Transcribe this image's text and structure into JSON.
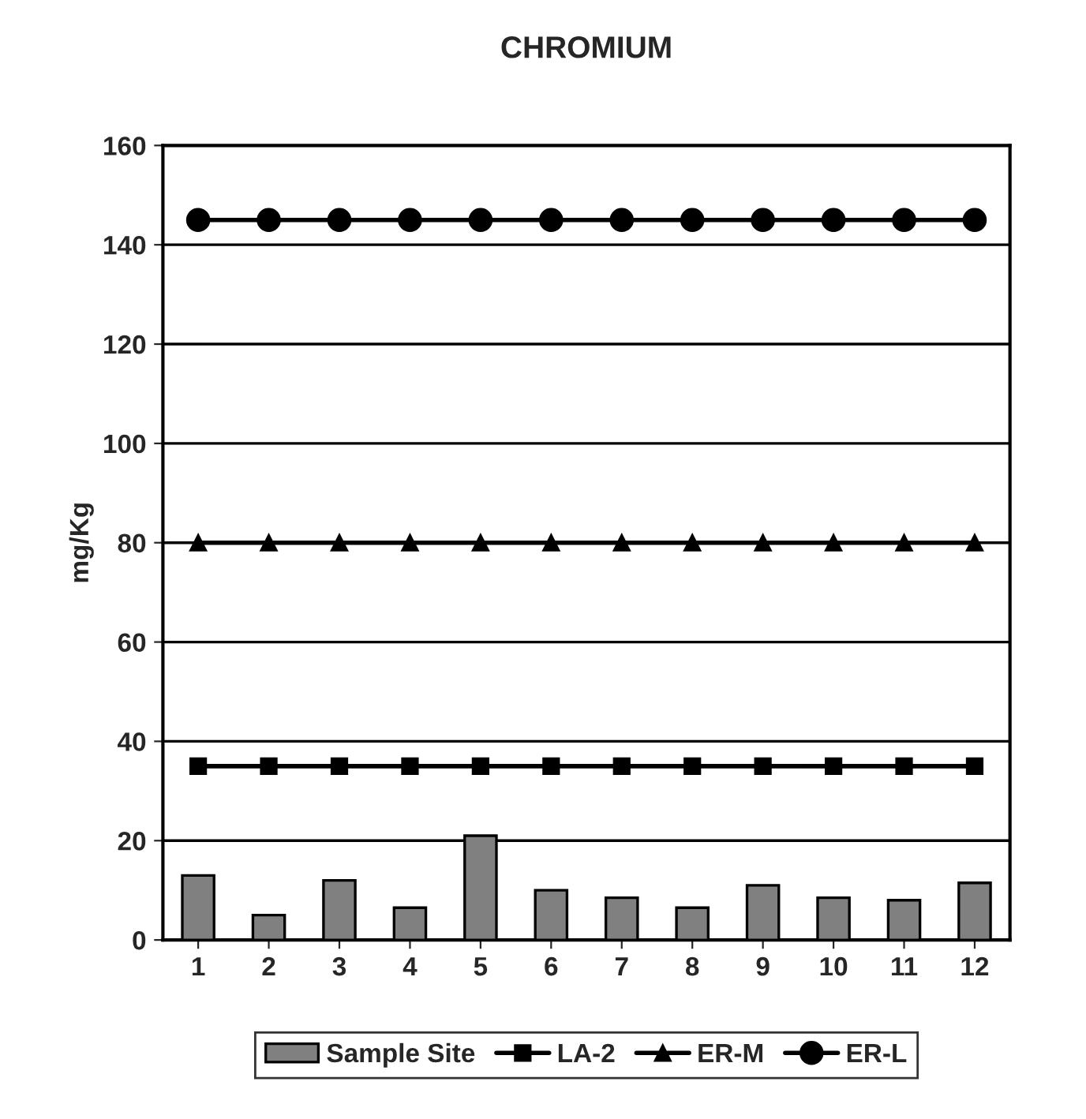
{
  "chart_data": {
    "type": "bar",
    "title": "CHROMIUM",
    "ylabel": "mg/Kg",
    "categories": [
      "1",
      "2",
      "3",
      "4",
      "5",
      "6",
      "7",
      "8",
      "9",
      "10",
      "11",
      "12"
    ],
    "series": [
      {
        "name": "Sample Site",
        "color": "#808080",
        "values": [
          13,
          5,
          12,
          6.5,
          21,
          10,
          8.5,
          6.5,
          11,
          8.5,
          8,
          11.5
        ]
      },
      {
        "name": "LA-2",
        "type": "line",
        "color": "#000000",
        "marker": "square",
        "values": [
          35,
          35,
          35,
          35,
          35,
          35,
          35,
          35,
          35,
          35,
          35,
          35
        ]
      },
      {
        "name": "ER-M",
        "type": "line",
        "color": "#000000",
        "marker": "triangle",
        "values": [
          80,
          80,
          80,
          80,
          80,
          80,
          80,
          80,
          80,
          80,
          80,
          80
        ]
      },
      {
        "name": "ER-L",
        "type": "line",
        "color": "#000000",
        "marker": "circle",
        "values": [
          145,
          145,
          145,
          145,
          145,
          145,
          145,
          145,
          145,
          145,
          145,
          145
        ]
      }
    ],
    "ylim": [
      0,
      160
    ],
    "yticks": [
      0,
      20,
      40,
      60,
      80,
      100,
      120,
      140,
      160
    ],
    "grid": "y",
    "legend": "bottom"
  }
}
